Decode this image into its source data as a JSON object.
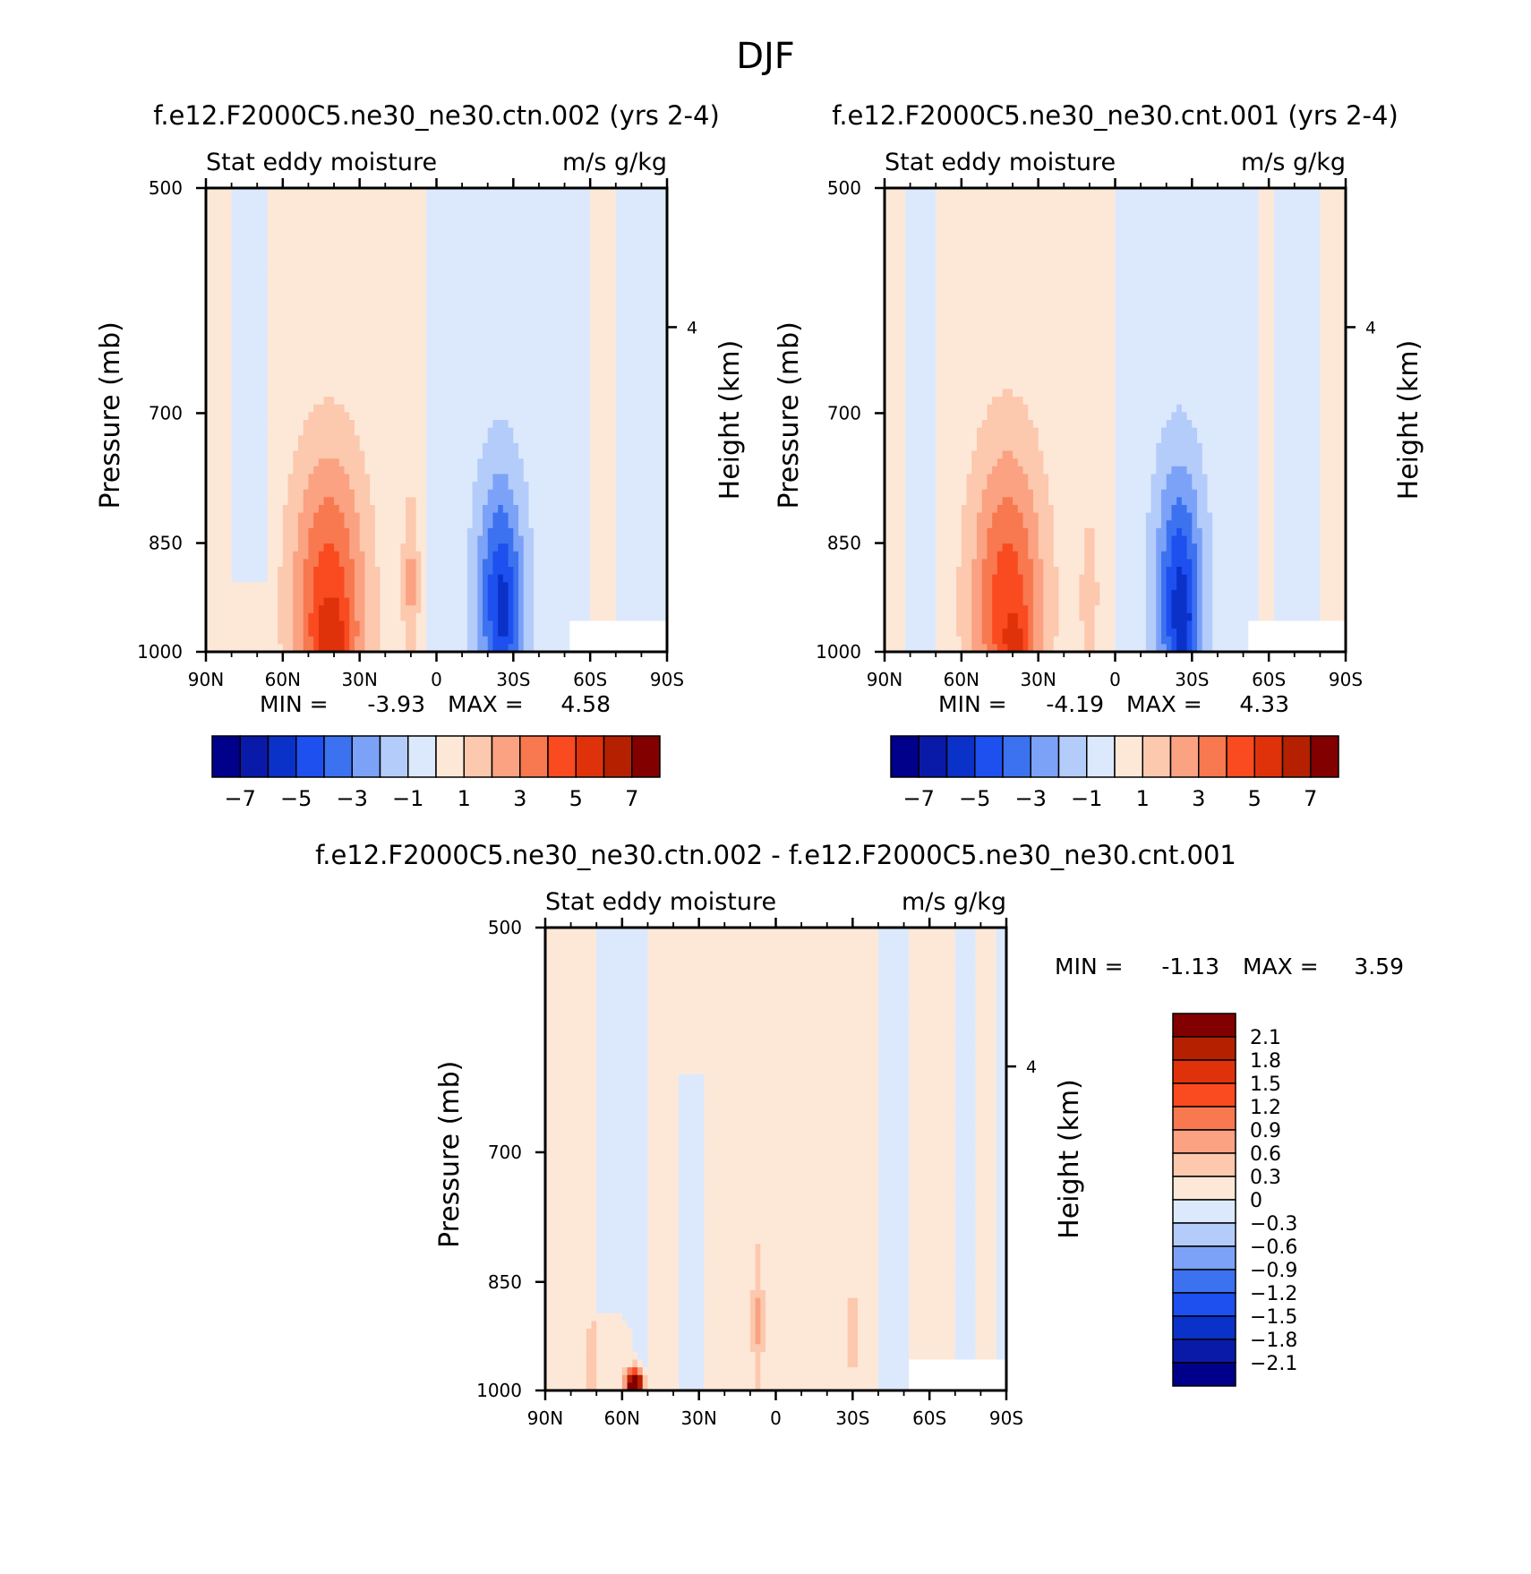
{
  "figure": {
    "title": "DJF"
  },
  "colors": {
    "blues": [
      "#00008a",
      "#0a1aa8",
      "#0a32c8",
      "#1e50f0",
      "#3c72f0",
      "#7ca2f8",
      "#b4ccfa",
      "#dce9fc"
    ],
    "reds": [
      "#fde8d8",
      "#fcc8ae",
      "#faa282",
      "#f87850",
      "#fa4a20",
      "#e0320a",
      "#b42000",
      "#820000"
    ],
    "missing": "#ffffff"
  },
  "chart_data": [
    {
      "type": "heatmap",
      "title": "f.e12.F2000C5.ne30_ne30.ctn.002 (yrs 2-4)",
      "left_label": "Stat eddy moisture",
      "right_label": "m/s g/kg",
      "xlabel": "",
      "ylabel": "Pressure (mb)",
      "y2label": "Height (km)",
      "x_ticks": [
        "90N",
        "60N",
        "30N",
        "0",
        "30S",
        "60S",
        "90S"
      ],
      "y_ticks": [
        "500",
        "700",
        "850",
        "1000"
      ],
      "y2_ticks": [
        "4"
      ],
      "xlim": [
        90,
        -90
      ],
      "ylim": [
        1000,
        500
      ],
      "min_label": "MIN =",
      "min": "-3.93",
      "max_label": "MAX =",
      "max": "4.58",
      "colorbar": {
        "levels": [
          -7,
          -6,
          -5,
          -4,
          -3,
          -2,
          -1,
          0,
          1,
          2,
          3,
          4,
          5,
          6,
          7
        ],
        "labels": [
          "-7",
          "-5",
          "-3",
          "-1",
          "1",
          "3",
          "5",
          "7"
        ]
      }
    },
    {
      "type": "heatmap",
      "title": "f.e12.F2000C5.ne30_ne30.cnt.001 (yrs 2-4)",
      "left_label": "Stat eddy moisture",
      "right_label": "m/s g/kg",
      "xlabel": "",
      "ylabel": "Pressure (mb)",
      "y2label": "Height (km)",
      "x_ticks": [
        "90N",
        "60N",
        "30N",
        "0",
        "30S",
        "60S",
        "90S"
      ],
      "y_ticks": [
        "500",
        "700",
        "850",
        "1000"
      ],
      "y2_ticks": [
        "4"
      ],
      "xlim": [
        90,
        -90
      ],
      "ylim": [
        1000,
        500
      ],
      "min_label": "MIN =",
      "min": "-4.19",
      "max_label": "MAX =",
      "max": "4.33",
      "colorbar": {
        "levels": [
          -7,
          -6,
          -5,
          -4,
          -3,
          -2,
          -1,
          0,
          1,
          2,
          3,
          4,
          5,
          6,
          7
        ],
        "labels": [
          "-7",
          "-5",
          "-3",
          "-1",
          "1",
          "3",
          "5",
          "7"
        ]
      }
    },
    {
      "type": "heatmap",
      "title": "f.e12.F2000C5.ne30_ne30.ctn.002 - f.e12.F2000C5.ne30_ne30.cnt.001",
      "left_label": "Stat eddy moisture",
      "right_label": "m/s g/kg",
      "xlabel": "",
      "ylabel": "Pressure (mb)",
      "y2label": "Height (km)",
      "x_ticks": [
        "90N",
        "60N",
        "30N",
        "0",
        "30S",
        "60S",
        "90S"
      ],
      "y_ticks": [
        "500",
        "700",
        "850",
        "1000"
      ],
      "y2_ticks": [
        "4"
      ],
      "xlim": [
        90,
        -90
      ],
      "ylim": [
        1000,
        500
      ],
      "min_label": "MIN =",
      "min": "-1.13",
      "max_label": "MAX =",
      "max": "3.59",
      "colorbar": {
        "orientation": "vertical",
        "levels": [
          2.1,
          1.8,
          1.5,
          1.2,
          0.9,
          0.6,
          0.3,
          0,
          -0.3,
          -0.6,
          -0.9,
          -1.2,
          -1.5,
          -1.8,
          -2.1
        ],
        "labels": [
          "2.1",
          "1.8",
          "1.5",
          "1.2",
          "0.9",
          "0.6",
          "0.3",
          "0",
          "-0.3",
          "-0.6",
          "-0.9",
          "-1.2",
          "-1.5",
          "-1.8",
          "-2.1"
        ]
      }
    }
  ]
}
